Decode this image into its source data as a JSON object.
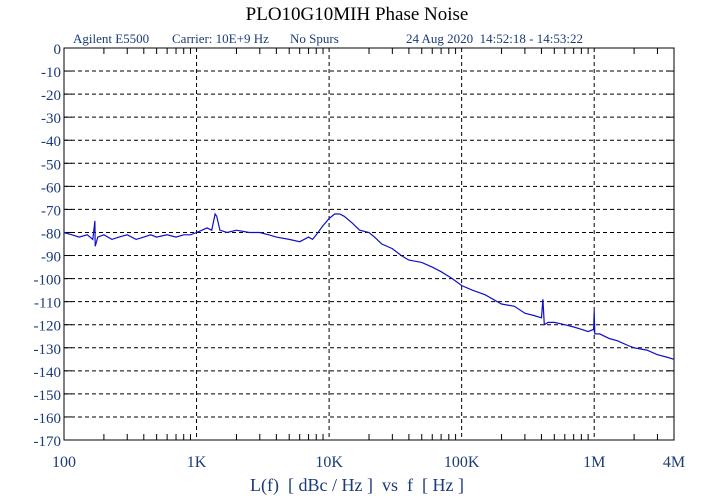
{
  "chart_data": {
    "type": "line",
    "title": "PLO10G10MIH Phase Noise",
    "info": {
      "instrument": "Agilent E5500",
      "carrier": "Carrier: 10E+9 Hz",
      "spurs": "No Spurs",
      "timestamp": "24 Aug 2020  14:52:18 - 14:53:22"
    },
    "xlabel": "L(f)  [ dBc / Hz ]  vs  f  [ Hz ]",
    "ylabel": "",
    "x_scale": "log",
    "xlim": [
      100,
      4000000
    ],
    "ylim": [
      -170,
      0
    ],
    "grid": true,
    "x_ticks": [
      {
        "value": 100,
        "label": "100"
      },
      {
        "value": 1000,
        "label": "1K"
      },
      {
        "value": 10000,
        "label": "10K"
      },
      {
        "value": 100000,
        "label": "100K"
      },
      {
        "value": 1000000,
        "label": "1M"
      },
      {
        "value": 4000000,
        "label": "4M"
      }
    ],
    "y_ticks": [
      0,
      -10,
      -20,
      -30,
      -40,
      -50,
      -60,
      -70,
      -80,
      -90,
      -100,
      -110,
      -120,
      -130,
      -140,
      -150,
      -160,
      -170
    ],
    "line_color": "#1010c8",
    "series": [
      {
        "x": [
          100,
          115,
          130,
          150,
          165,
          171,
          172,
          180,
          200,
          230,
          260,
          300,
          350,
          400,
          450,
          500,
          600,
          700,
          800,
          900,
          1000,
          1100,
          1200,
          1300,
          1380,
          1420,
          1500,
          1700,
          2000,
          2500,
          3000,
          3500,
          4000,
          5000,
          6000,
          7000,
          7500,
          8000,
          9000,
          10000,
          11000,
          12000,
          13000,
          15000,
          17000,
          20000,
          22000,
          25000,
          30000,
          35000,
          40000,
          50000,
          60000,
          70000,
          85000,
          100000,
          120000,
          150000,
          200000,
          250000,
          300000,
          350000,
          400000,
          410000,
          420000,
          450000,
          500000,
          600000,
          700000,
          800000,
          900000,
          990000,
          1000000,
          1010000,
          1100000,
          1300000,
          1500000,
          1800000,
          2000000,
          2500000,
          3000000,
          3500000,
          4000000
        ],
        "y": [
          -80,
          -81,
          -82,
          -81,
          -83,
          -75,
          -86,
          -82,
          -81,
          -83,
          -82,
          -81,
          -83,
          -82,
          -81,
          -82,
          -81,
          -82,
          -81,
          -81,
          -80,
          -79,
          -78,
          -79,
          -72,
          -73,
          -79,
          -80,
          -79,
          -80,
          -80,
          -81,
          -82,
          -83,
          -84,
          -82,
          -83,
          -81,
          -77,
          -74,
          -72,
          -72,
          -73,
          -76,
          -79,
          -80,
          -82,
          -85,
          -87,
          -90,
          -92,
          -93,
          -95,
          -97,
          -100,
          -103,
          -105,
          -107,
          -111,
          -112,
          -115,
          -116,
          -117,
          -109,
          -120,
          -119,
          -119,
          -120,
          -121,
          -122,
          -123,
          -122,
          -114,
          -124,
          -124,
          -126,
          -127,
          -129,
          -130,
          -131,
          -133,
          -134,
          -135
        ]
      }
    ]
  }
}
